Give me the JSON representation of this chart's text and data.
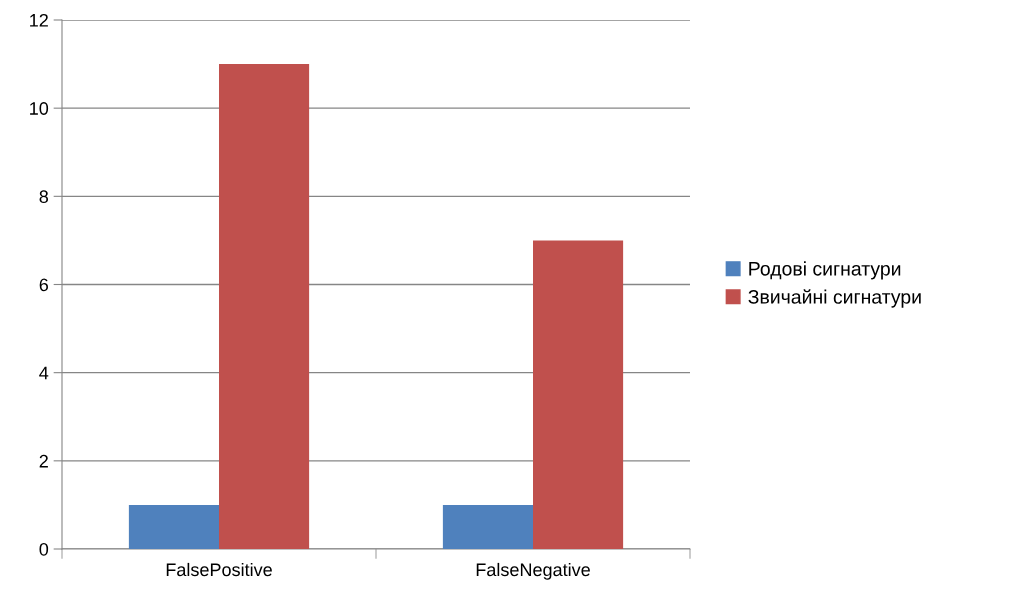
{
  "chart_data": {
    "type": "bar",
    "categories": [
      "FalsePositive",
      "FalseNegative"
    ],
    "series": [
      {
        "name": "Родові сигнатури",
        "color": "#4f81bd",
        "values": [
          1,
          1
        ]
      },
      {
        "name": "Звичайні сигнатури",
        "color": "#c0504d",
        "values": [
          11,
          7
        ]
      }
    ],
    "ylim": [
      0,
      12
    ],
    "yticks": [
      0,
      2,
      4,
      6,
      8,
      10,
      12
    ],
    "grid": "y",
    "legend": "right"
  }
}
